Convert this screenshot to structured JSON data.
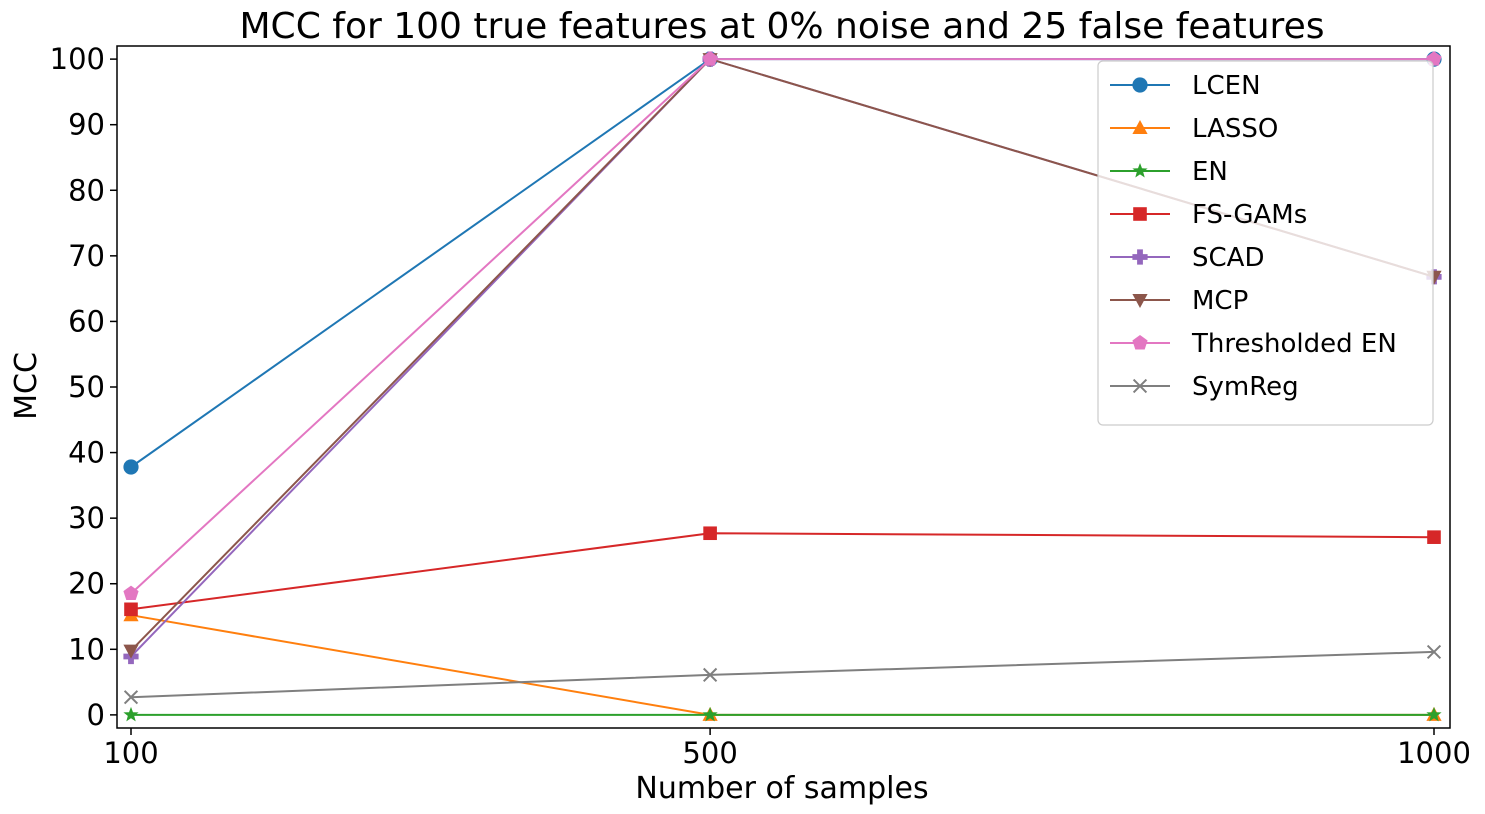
{
  "chart_data": {
    "type": "line",
    "title": "MCC for 100 true features at 0% noise and 25 false features",
    "xlabel": "Number of samples",
    "ylabel": "MCC",
    "x": [
      100,
      500,
      1000
    ],
    "x_ticks": [
      "100",
      "500",
      "1000"
    ],
    "y_ticks": [
      "0",
      "10",
      "20",
      "30",
      "40",
      "50",
      "60",
      "70",
      "80",
      "90",
      "100"
    ],
    "ylim": [
      -2,
      102
    ],
    "grid": false,
    "legend_position": "top-right",
    "series": [
      {
        "name": "LCEN",
        "values": [
          37.8,
          100,
          100
        ],
        "color": "#1f77b4",
        "marker": "circle"
      },
      {
        "name": "LASSO",
        "values": [
          15.2,
          0,
          0
        ],
        "color": "#ff7f0e",
        "marker": "triangle-up"
      },
      {
        "name": "EN",
        "values": [
          0,
          0,
          0
        ],
        "color": "#2ca02c",
        "marker": "star"
      },
      {
        "name": "FS-GAMs",
        "values": [
          16.1,
          27.7,
          27.1
        ],
        "color": "#d62728",
        "marker": "square"
      },
      {
        "name": "SCAD",
        "values": [
          8.9,
          100,
          66.8
        ],
        "color": "#9467bd",
        "marker": "plus"
      },
      {
        "name": "MCP",
        "values": [
          9.8,
          100,
          66.8
        ],
        "color": "#8c564b",
        "marker": "triangle-down"
      },
      {
        "name": "Thresholded EN",
        "values": [
          18.5,
          100,
          100
        ],
        "color": "#e377c2",
        "marker": "pentagon"
      },
      {
        "name": "SymReg",
        "values": [
          2.7,
          6.1,
          9.6
        ],
        "color": "#7f7f7f",
        "marker": "x"
      }
    ]
  }
}
